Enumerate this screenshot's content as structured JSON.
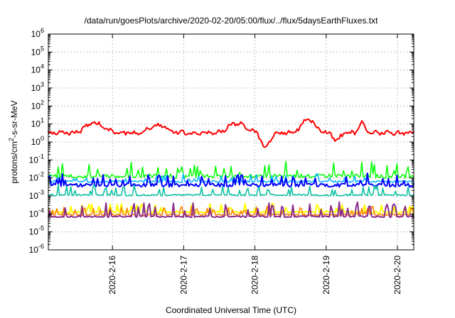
{
  "chart_data": {
    "type": "line",
    "title": "/data/run/goesPlots/archive/2020-02-20/05:00/flux/../flux/5daysEarthFluxes.txt",
    "xlabel": "Coordinated Universal Time (UTC)",
    "ylabel_base": "protons/cm",
    "ylabel_sup": "2",
    "ylabel_rest": "-s-sr-MeV",
    "yscale": "log",
    "ylim_exp": [
      -6,
      6
    ],
    "y_ticks": [
      {
        "base": "10",
        "exp": "6",
        "e": 6
      },
      {
        "base": "10",
        "exp": "5",
        "e": 5
      },
      {
        "base": "10",
        "exp": "4",
        "e": 4
      },
      {
        "base": "10",
        "exp": "3",
        "e": 3
      },
      {
        "base": "10",
        "exp": "2",
        "e": 2
      },
      {
        "base": "10",
        "exp": "1",
        "e": 1
      },
      {
        "base": "10",
        "exp": "0",
        "e": 0
      },
      {
        "base": "10",
        "exp": "-1",
        "e": -1
      },
      {
        "base": "10",
        "exp": "-2",
        "e": -2
      },
      {
        "base": "10",
        "exp": "-3",
        "e": -3
      },
      {
        "base": "10",
        "exp": "-4",
        "e": -4
      },
      {
        "base": "10",
        "exp": "-5",
        "e": -5
      },
      {
        "base": "10",
        "exp": "-6",
        "e": -6
      }
    ],
    "x_range_days": [
      15.1,
      20.23
    ],
    "x_ticks": [
      {
        "label": "2020-2-16",
        "day": 16
      },
      {
        "label": "2020-2-17",
        "day": 17
      },
      {
        "label": "2020-2-18",
        "day": 18
      },
      {
        "label": "2020-2-19",
        "day": 19
      },
      {
        "label": "2020-2-20",
        "day": 20
      }
    ],
    "grid": true,
    "series": [
      {
        "color": "#ff0000",
        "width": 2,
        "base": 0.5,
        "noise": 0.1,
        "spikes": 0,
        "bumps": [
          [
            15.75,
            0.55,
            0.17
          ],
          [
            16.65,
            0.45,
            0.17
          ],
          [
            17.75,
            0.55,
            0.17
          ],
          [
            18.75,
            0.75,
            0.13
          ],
          [
            19.5,
            0.55,
            0.05
          ],
          [
            18.15,
            -0.85,
            0.08
          ],
          [
            19.15,
            -0.45,
            0.06
          ]
        ]
      },
      {
        "color": "#00ff00",
        "width": 1.5,
        "base": -1.9,
        "noise": 0.12,
        "spikes": 0.75
      },
      {
        "color": "#00b3ff",
        "width": 1.5,
        "base": -2.2,
        "noise": 0.05,
        "spikes": 0.4
      },
      {
        "color": "#0000ff",
        "width": 2,
        "base": -2.4,
        "noise": 0.1,
        "spikes": 0.6
      },
      {
        "color": "#00bfa0",
        "width": 1.5,
        "base": -2.95,
        "noise": 0.05,
        "spikes": 0.55
      },
      {
        "color": "#ffff00",
        "width": 2,
        "base": -3.9,
        "noise": 0.05,
        "spikes": 0.5
      },
      {
        "color": "#ff8000",
        "width": 1.5,
        "base": -4.05,
        "noise": 0.05,
        "spikes": 0.5
      },
      {
        "color": "#8b2c8b",
        "width": 2,
        "base": -4.15,
        "noise": 0.04,
        "spikes": 0.8
      }
    ]
  }
}
